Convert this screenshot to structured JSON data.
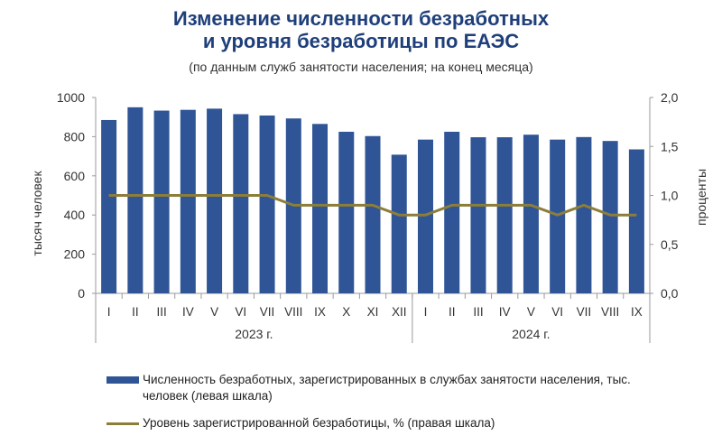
{
  "title_line1": "Изменение численности безработных",
  "title_line2": "и уровня безработицы по ЕАЭС",
  "subtitle": "(по данным служб занятости населения; на конец месяца)",
  "colors": {
    "bar": "#2f5597",
    "line": "#8b7d3a",
    "title": "#1f3f7a"
  },
  "chart_data": {
    "type": "bar",
    "categories": [
      "I",
      "II",
      "III",
      "IV",
      "V",
      "VI",
      "VII",
      "VIII",
      "IX",
      "X",
      "XI",
      "XII",
      "I",
      "II",
      "III",
      "IV",
      "V",
      "VI",
      "VII",
      "VIII",
      "IX"
    ],
    "year_groups": [
      {
        "label": "2023 г.",
        "count": 12
      },
      {
        "label": "2024 г.",
        "count": 9
      }
    ],
    "series": [
      {
        "name": "Численность безработных, зарегистрированных в  службах занятости населения,  тыс. человек (левая шкала)",
        "type": "bar",
        "axis": "left",
        "values": [
          885,
          950,
          933,
          937,
          943,
          915,
          908,
          893,
          865,
          825,
          803,
          708,
          785,
          825,
          797,
          797,
          810,
          785,
          798,
          778,
          735
        ]
      },
      {
        "name": "Уровень зарегистрированной безработицы, % (правая шкала)",
        "type": "line",
        "axis": "right",
        "values": [
          1.0,
          1.0,
          1.0,
          1.0,
          1.0,
          1.0,
          1.0,
          0.9,
          0.9,
          0.9,
          0.9,
          0.8,
          0.8,
          0.9,
          0.9,
          0.9,
          0.9,
          0.8,
          0.9,
          0.8,
          0.8
        ]
      }
    ],
    "y_left": {
      "label": "тысяч человек",
      "min": 0,
      "max": 1000,
      "ticks": [
        "0",
        "200",
        "400",
        "600",
        "800",
        "1000"
      ]
    },
    "y_right": {
      "label": "проценты",
      "min": 0,
      "max": 2.0,
      "ticks": [
        "0,0",
        "0,5",
        "1,0",
        "1,5",
        "2,0"
      ]
    },
    "grid": false
  }
}
